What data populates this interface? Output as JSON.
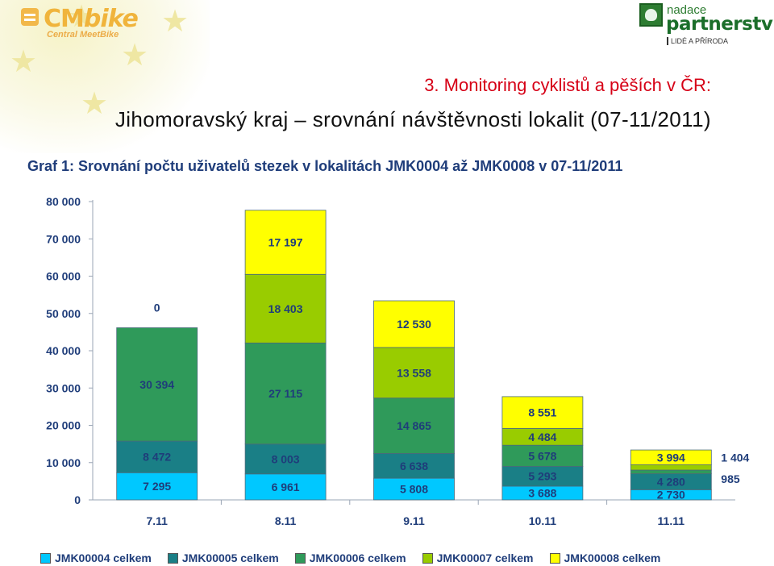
{
  "header": {
    "logo_left": {
      "main": "CM",
      "italic": "bike",
      "sub": "Central MeetBike"
    },
    "logo_right": {
      "small": "nadace",
      "big": "partnerství",
      "tagline": "LIDÉ A PŘÍRODA"
    },
    "title_line1": "3. Monitoring cyklistů a pěších v ČR:",
    "title_line2": "Jihomoravský kraj – srovnání návštěvnosti lokalit (07-11/2011)"
  },
  "chart_data": {
    "type": "bar",
    "stacked": true,
    "title": "Graf 1: Srovnání počtu uživatelů stezek v lokalitách JMK0004 až JMK0008 v 07-11/2011",
    "categories": [
      "7.11",
      "8.11",
      "9.11",
      "10.11",
      "11.11"
    ],
    "ylim": [
      0,
      80000
    ],
    "yticks": [
      0,
      10000,
      20000,
      30000,
      40000,
      50000,
      60000,
      70000,
      80000
    ],
    "ytick_labels": [
      "0",
      "10 000",
      "20 000",
      "30 000",
      "40 000",
      "50 000",
      "60 000",
      "70 000",
      "80 000"
    ],
    "grid": false,
    "legend_position": "bottom",
    "series": [
      {
        "name": "JMK00004 celkem",
        "color": "#00c8ff",
        "values": [
          7295,
          6961,
          5808,
          3688,
          2730
        ],
        "labels": [
          "7 295",
          "6 961",
          "5 808",
          "3 688",
          "2 730"
        ]
      },
      {
        "name": "JMK00005 celkem",
        "color": "#1a7f86",
        "values": [
          8472,
          8003,
          6638,
          5293,
          4280
        ],
        "labels": [
          "8 472",
          "8 003",
          "6 638",
          "5 293",
          "4 280"
        ]
      },
      {
        "name": "JMK00006 celkem",
        "color": "#2f9a5a",
        "values": [
          30394,
          27115,
          14865,
          5678,
          985
        ],
        "labels": [
          "30 394",
          "27 115",
          "14 865",
          "5 678",
          "985"
        ]
      },
      {
        "name": "JMK00007 celkem",
        "color": "#99cc00",
        "values": [
          null,
          18403,
          13558,
          4484,
          1404
        ],
        "labels": [
          "",
          "18 403",
          "13 558",
          "4 484",
          "1 404"
        ]
      },
      {
        "name": "JMK00008 celkem",
        "color": "#ffff00",
        "values": [
          0,
          17197,
          12530,
          8551,
          3994
        ],
        "labels": [
          "0",
          "17 197",
          "12 530",
          "8 551",
          "3 994"
        ]
      }
    ]
  }
}
